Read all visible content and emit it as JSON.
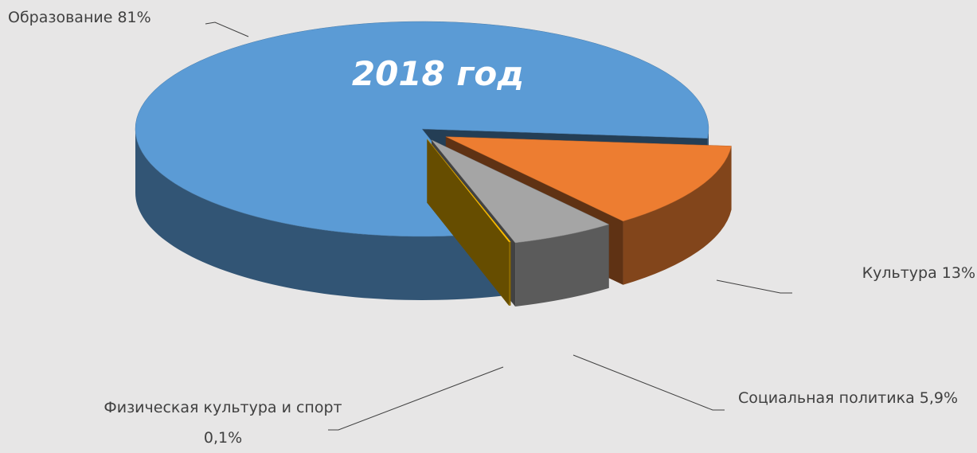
{
  "chart_data": {
    "type": "pie",
    "title": "2018 год",
    "categories": [
      "Образование",
      "Культура",
      "Социальная политика",
      "Физическая культура и спорт"
    ],
    "values": [
      81,
      13,
      5.9,
      0.1
    ],
    "value_labels": [
      "81%",
      "13%",
      "5,9%",
      "0,1%"
    ],
    "colors": [
      "#5b9bd5",
      "#ed7d31",
      "#a5a5a5",
      "#ffc000"
    ]
  }
}
